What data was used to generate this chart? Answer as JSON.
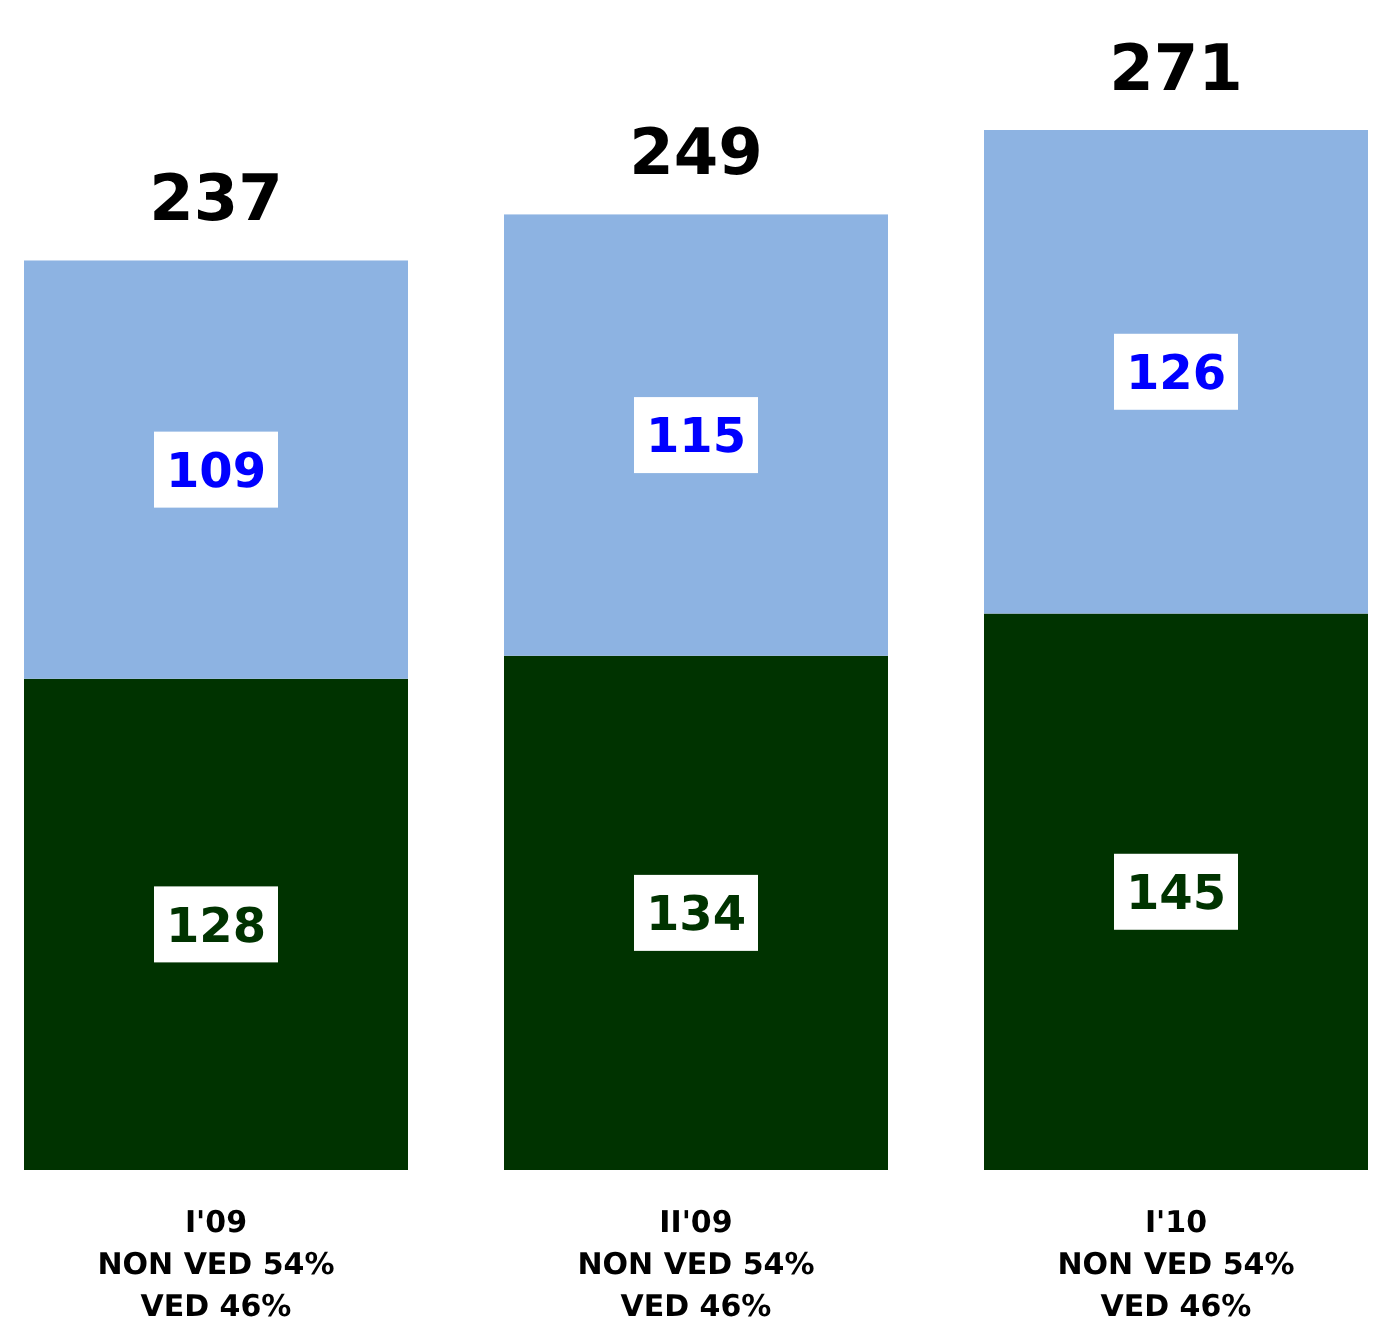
{
  "chart_data": {
    "type": "bar",
    "stacked": true,
    "data_labels": true,
    "categories": [
      "I'09\nNON VED 54%\nVED 46%",
      "II'09\nNON VED 54%\nVED 46%",
      "I'10\nNON VED 54%\nVED 46%"
    ],
    "series": [
      {
        "color": "#003300",
        "values": [
          128,
          134,
          145
        ]
      },
      {
        "color": "#8db3e2",
        "values": [
          109,
          115,
          126
        ]
      }
    ],
    "totals": [
      "237",
      "249",
      "271"
    ]
  }
}
